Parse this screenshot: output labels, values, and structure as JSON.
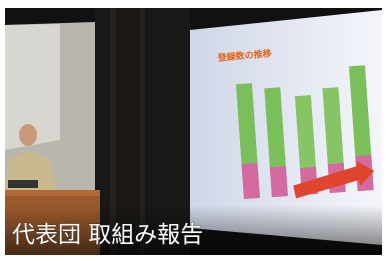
{
  "caption": "代表団 取組み報告",
  "slide": {
    "title": "登録数の推移"
  }
}
